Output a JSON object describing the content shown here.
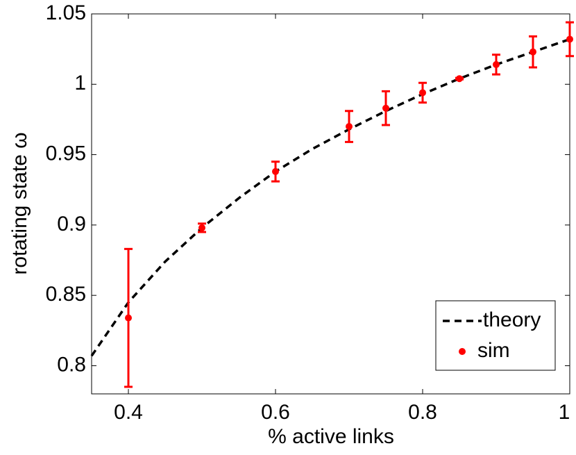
{
  "chart_data": {
    "type": "line",
    "xlabel": "% active links",
    "ylabel": "rotating state ω",
    "xlim": [
      0.35,
      1
    ],
    "ylim": [
      0.78,
      1.05
    ],
    "xticks": [
      0.4,
      0.6,
      0.8,
      1
    ],
    "yticks": [
      0.8,
      0.85,
      0.9,
      0.95,
      1,
      1.05
    ],
    "legend": "lower right",
    "series": [
      {
        "name": "theory",
        "color": "#000000",
        "style": "dashed",
        "x": [
          0.35,
          0.4,
          0.45,
          0.5,
          0.55,
          0.6,
          0.65,
          0.7,
          0.75,
          0.8,
          0.85,
          0.9,
          0.95,
          1
        ],
        "values": [
          0.807,
          0.845,
          0.874,
          0.898,
          0.919,
          0.938,
          0.954,
          0.968,
          0.981,
          0.993,
          1.004,
          1.014,
          1.023,
          1.032
        ]
      },
      {
        "name": "sim",
        "color": "#ff0000",
        "style": "errorbar",
        "x": [
          0.4,
          0.5,
          0.6,
          0.7,
          0.75,
          0.8,
          0.85,
          0.9,
          0.95,
          1
        ],
        "values": [
          0.834,
          0.898,
          0.938,
          0.97,
          0.983,
          0.994,
          1.004,
          1.014,
          1.023,
          1.032
        ],
        "errors": [
          0.049,
          0.003,
          0.007,
          0.011,
          0.012,
          0.007,
          0.0005,
          0.007,
          0.011,
          0.012
        ]
      }
    ]
  }
}
